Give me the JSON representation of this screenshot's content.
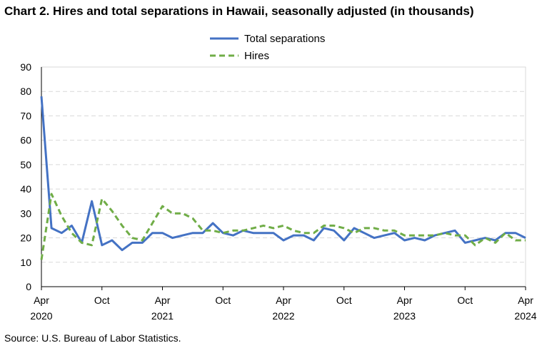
{
  "chart_data": {
    "type": "line",
    "title": "Chart 2. Hires and total separations in Hawaii, seasonally adjusted (in thousands)",
    "source": "Source: U.S. Bureau of Labor Statistics.",
    "xlabel": "",
    "ylabel": "",
    "ylim": [
      0,
      90
    ],
    "yticks": [
      0,
      10,
      20,
      30,
      40,
      50,
      60,
      70,
      80,
      90
    ],
    "grid": true,
    "legend_position": "top-center",
    "x_start": "2020-04",
    "x_end": "2024-04",
    "x_ticks": [
      {
        "month_label": "Apr",
        "year_label": "2020"
      },
      {
        "month_label": "Oct",
        "year_label": ""
      },
      {
        "month_label": "Apr",
        "year_label": "2021"
      },
      {
        "month_label": "Oct",
        "year_label": ""
      },
      {
        "month_label": "Apr",
        "year_label": "2022"
      },
      {
        "month_label": "Oct",
        "year_label": ""
      },
      {
        "month_label": "Apr",
        "year_label": "2023"
      },
      {
        "month_label": "Oct",
        "year_label": ""
      },
      {
        "month_label": "Apr",
        "year_label": "2024"
      }
    ],
    "series": [
      {
        "name": "Total separations",
        "color": "#4472c4",
        "style": "solid",
        "values": [
          78,
          24,
          22,
          25,
          18,
          35,
          17,
          19,
          15,
          18,
          18,
          22,
          22,
          20,
          21,
          22,
          22,
          26,
          22,
          21,
          23,
          22,
          22,
          22,
          19,
          21,
          21,
          19,
          24,
          23,
          19,
          24,
          22,
          20,
          21,
          22,
          19,
          20,
          19,
          21,
          22,
          23,
          18,
          19,
          20,
          19,
          22,
          22,
          20
        ]
      },
      {
        "name": "Hires",
        "color": "#70ad47",
        "style": "dashed",
        "values": [
          11,
          38,
          29,
          22,
          18,
          17,
          36,
          31,
          25,
          20,
          19,
          26,
          33,
          30,
          30,
          28,
          23,
          23,
          22,
          23,
          23,
          24,
          25,
          24,
          25,
          23,
          22,
          22,
          25,
          25,
          24,
          22,
          24,
          24,
          23,
          23,
          21,
          21,
          21,
          21,
          22,
          21,
          21,
          17,
          20,
          18,
          22,
          19,
          19
        ]
      }
    ]
  }
}
